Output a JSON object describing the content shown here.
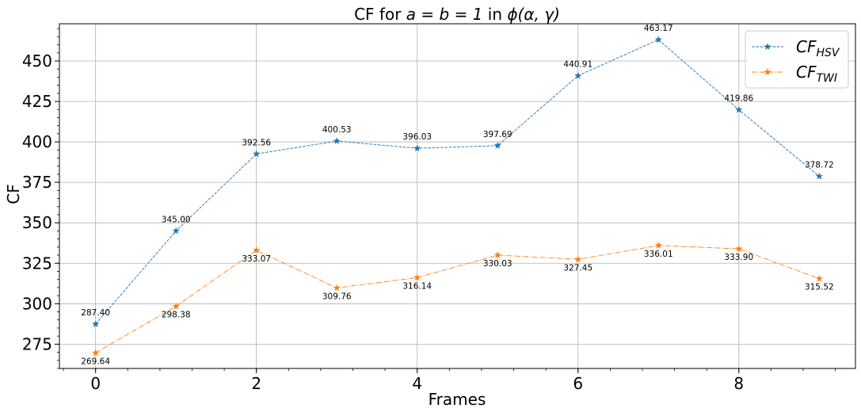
{
  "chart_data": {
    "type": "line",
    "title_prefix": "CF for ",
    "title_math": "a = b = 1",
    "title_mid": " in ",
    "title_phi": "ϕ(α, γ)",
    "xlabel": "Frames",
    "ylabel": "CF",
    "x": [
      0,
      1,
      2,
      3,
      4,
      5,
      6,
      7,
      8,
      9
    ],
    "xlim": [
      -0.45,
      9.45
    ],
    "ylim": [
      260,
      473
    ],
    "xticks": [
      0,
      2,
      4,
      6,
      8
    ],
    "yticks": [
      275,
      300,
      325,
      350,
      375,
      400,
      425,
      450
    ],
    "grid": true,
    "legend_position": "top-right",
    "series": [
      {
        "name": "CF_HSV",
        "legend_main": "CF",
        "legend_sub": "HSV",
        "color": "#1f77b4",
        "marker": "star",
        "linestyle": "dashed",
        "values": [
          287.4,
          345.0,
          392.56,
          400.53,
          396.03,
          397.69,
          440.91,
          463.17,
          419.86,
          378.72
        ],
        "labels": [
          "287.40",
          "345.00",
          "392.56",
          "400.53",
          "396.03",
          "397.69",
          "440.91",
          "463.17",
          "419.86",
          "378.72"
        ],
        "label_position": "above"
      },
      {
        "name": "CF_TWI",
        "legend_main": "CF",
        "legend_sub": "TWI",
        "color": "#ff7f0e",
        "marker": "star",
        "linestyle": "dashdot",
        "values": [
          269.64,
          298.38,
          333.07,
          309.76,
          316.14,
          330.03,
          327.45,
          336.01,
          333.9,
          315.52
        ],
        "labels": [
          "269.64",
          "298.38",
          "333.07",
          "309.76",
          "316.14",
          "330.03",
          "327.45",
          "336.01",
          "333.90",
          "315.52"
        ],
        "label_position": "below"
      }
    ]
  }
}
